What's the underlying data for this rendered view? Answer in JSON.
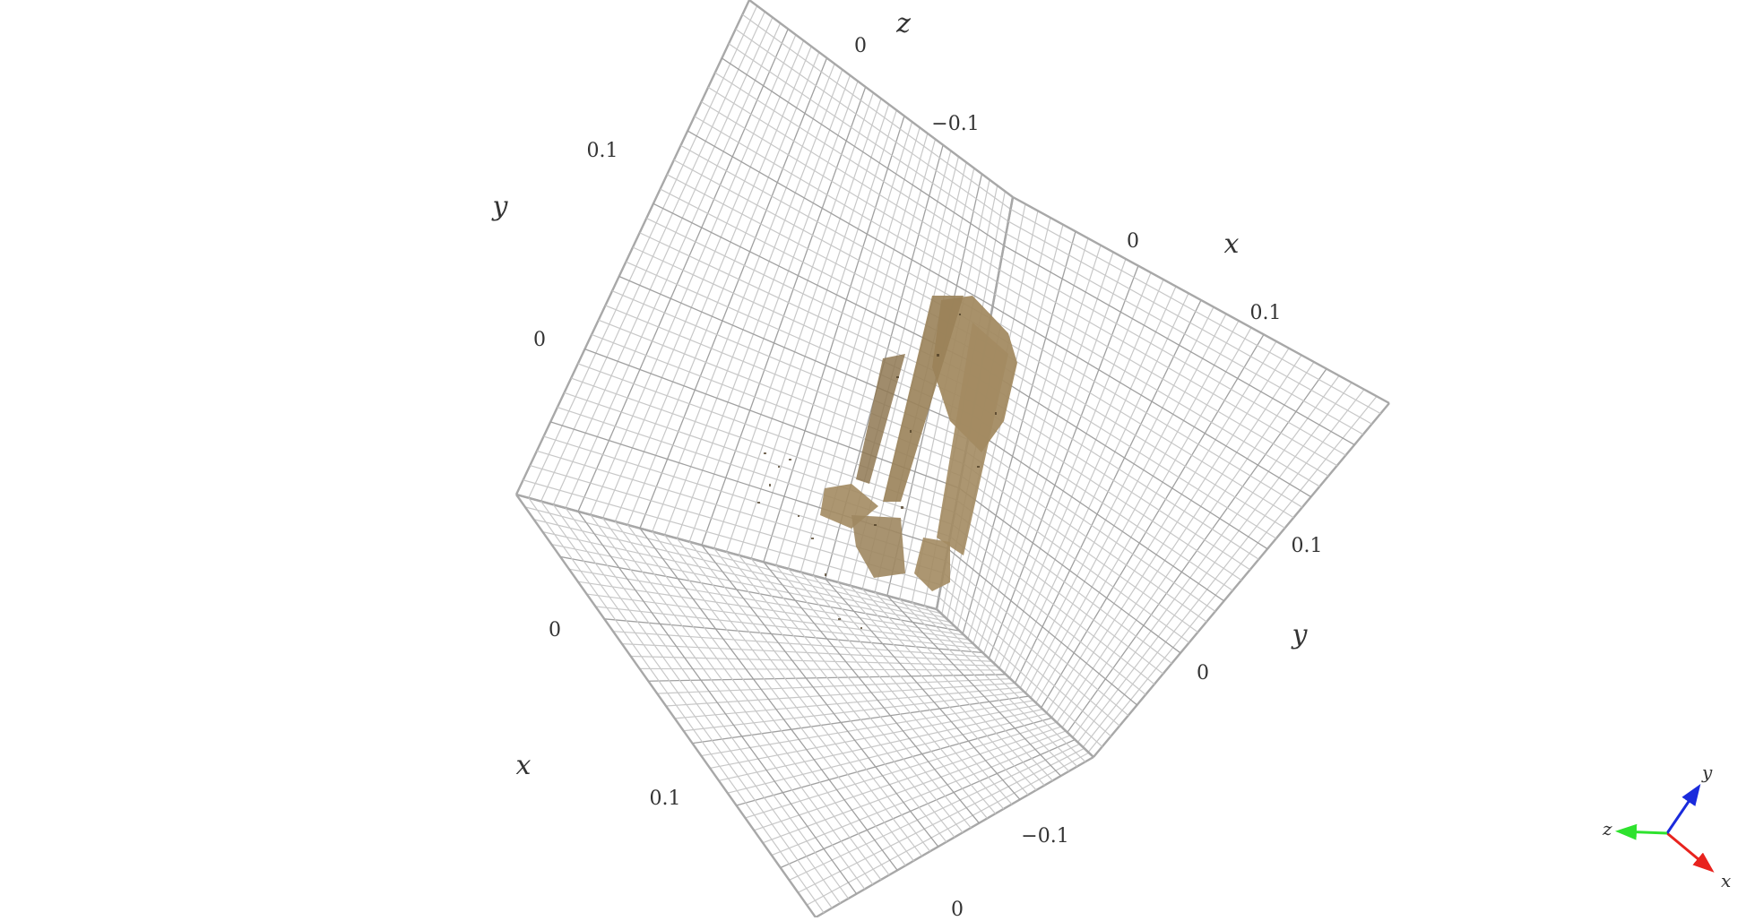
{
  "scene": {
    "colors": {
      "background": "#ffffff",
      "grid": "#c8c8c8",
      "object": "#a38b62",
      "object_shadow": "#4a3a22",
      "triad_x": "#e8231e",
      "triad_y": "#1a2bdc",
      "triad_z": "#2ee22e"
    },
    "panels": {
      "left": {
        "tick_labels": [
          "0.1",
          "0"
        ],
        "axis_name": "y"
      },
      "top": {
        "tick_labels": [
          "0",
          "−0.1",
          "0",
          "0.1"
        ],
        "axis_names": [
          "z",
          "x"
        ]
      },
      "right": {
        "tick_labels": [
          "0.1",
          "0"
        ],
        "axis_name": "y"
      },
      "bottom": {
        "tick_labels": [
          "0",
          "0.1",
          "−0.1",
          "0"
        ],
        "axis_name": "x"
      }
    },
    "orientation_triad": {
      "x_label": "x",
      "y_label": "y",
      "z_label": "z"
    }
  }
}
